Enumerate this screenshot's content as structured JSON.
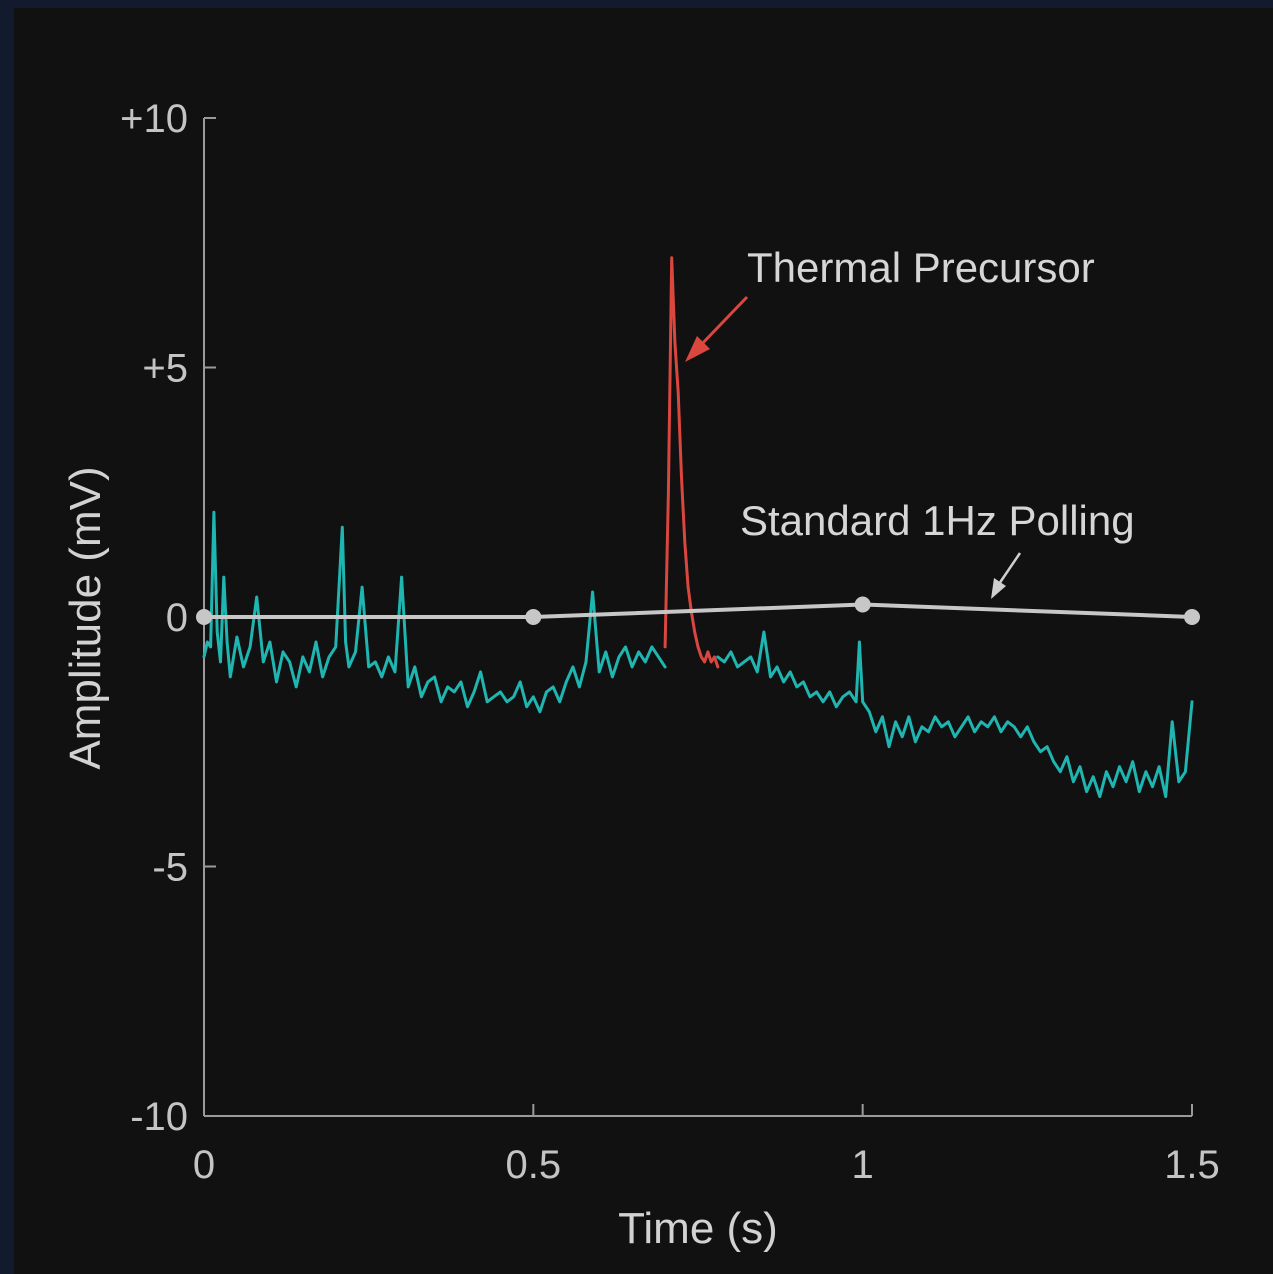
{
  "chart_data": {
    "type": "line",
    "title": "",
    "xlabel": "Time (s)",
    "ylabel": "Amplitude (mV)",
    "xlim": [
      0,
      1.5
    ],
    "ylim": [
      -10,
      10
    ],
    "x_ticks": [
      {
        "value": 0,
        "label": "0"
      },
      {
        "value": 0.5,
        "label": "0.5"
      },
      {
        "value": 1,
        "label": "1"
      },
      {
        "value": 1.5,
        "label": "1.5"
      }
    ],
    "y_ticks": [
      {
        "value": 10,
        "label": "+10"
      },
      {
        "value": 5,
        "label": "+5"
      },
      {
        "value": 0,
        "label": "0"
      },
      {
        "value": -5,
        "label": "-5"
      },
      {
        "value": -10,
        "label": "-10"
      }
    ],
    "grid": false,
    "series": [
      {
        "color": "#1fb5b0",
        "x": [
          0,
          0.005,
          0.01,
          0.015,
          0.02,
          0.025,
          0.03,
          0.035,
          0.04,
          0.05,
          0.06,
          0.07,
          0.08,
          0.09,
          0.1,
          0.11,
          0.12,
          0.13,
          0.14,
          0.15,
          0.16,
          0.17,
          0.18,
          0.19,
          0.2,
          0.21,
          0.215,
          0.22,
          0.23,
          0.24,
          0.25,
          0.26,
          0.27,
          0.28,
          0.29,
          0.3,
          0.31,
          0.32,
          0.33,
          0.34,
          0.35,
          0.36,
          0.37,
          0.38,
          0.39,
          0.4,
          0.41,
          0.42,
          0.43,
          0.44,
          0.45,
          0.46,
          0.47,
          0.48,
          0.49,
          0.5,
          0.51,
          0.52,
          0.53,
          0.54,
          0.55,
          0.56,
          0.57,
          0.58,
          0.59,
          0.6,
          0.61,
          0.62,
          0.63,
          0.64,
          0.65,
          0.66,
          0.67,
          0.68,
          0.69,
          0.7
        ],
        "values": [
          -0.8,
          -0.5,
          -0.6,
          2.1,
          -0.3,
          -0.9,
          0.8,
          -0.5,
          -1.2,
          -0.4,
          -1.0,
          -0.6,
          0.4,
          -0.9,
          -0.5,
          -1.3,
          -0.7,
          -0.9,
          -1.4,
          -0.8,
          -1.1,
          -0.5,
          -1.2,
          -0.8,
          -0.6,
          1.8,
          -0.5,
          -1.0,
          -0.7,
          0.6,
          -1.0,
          -0.9,
          -1.2,
          -0.8,
          -1.1,
          0.8,
          -1.4,
          -1.0,
          -1.6,
          -1.3,
          -1.2,
          -1.7,
          -1.4,
          -1.5,
          -1.3,
          -1.8,
          -1.5,
          -1.1,
          -1.7,
          -1.6,
          -1.5,
          -1.7,
          -1.6,
          -1.3,
          -1.8,
          -1.6,
          -1.9,
          -1.5,
          -1.4,
          -1.7,
          -1.3,
          -1.0,
          -1.4,
          -0.9,
          0.5,
          -1.1,
          -0.7,
          -1.2,
          -0.8,
          -0.6,
          -1.0,
          -0.7,
          -0.9,
          -0.6,
          -0.8,
          -1.0
        ]
      },
      {
        "color": "#d9473f",
        "x": [
          0.7,
          0.705,
          0.71,
          0.715,
          0.72,
          0.725,
          0.73,
          0.735,
          0.74,
          0.745,
          0.75,
          0.755,
          0.76,
          0.765,
          0.77,
          0.775,
          0.78
        ],
        "values": [
          -0.6,
          2.5,
          7.2,
          5.5,
          4.5,
          2.8,
          1.5,
          0.6,
          0.1,
          -0.3,
          -0.6,
          -0.8,
          -0.9,
          -0.7,
          -0.9,
          -0.8,
          -1.0
        ]
      },
      {
        "color": "#1fb5b0",
        "x": [
          0.78,
          0.79,
          0.8,
          0.81,
          0.82,
          0.83,
          0.84,
          0.85,
          0.86,
          0.87,
          0.88,
          0.89,
          0.9,
          0.91,
          0.92,
          0.93,
          0.94,
          0.95,
          0.96,
          0.97,
          0.98,
          0.99,
          0.995,
          1.0,
          1.01,
          1.02,
          1.03,
          1.04,
          1.05,
          1.06,
          1.07,
          1.08,
          1.09,
          1.1,
          1.11,
          1.12,
          1.13,
          1.14,
          1.15,
          1.16,
          1.17,
          1.18,
          1.19,
          1.2,
          1.21,
          1.22,
          1.23,
          1.24,
          1.25,
          1.26,
          1.27,
          1.28,
          1.29,
          1.3,
          1.31,
          1.32,
          1.33,
          1.34,
          1.35,
          1.36,
          1.37,
          1.38,
          1.39,
          1.4,
          1.41,
          1.42,
          1.43,
          1.44,
          1.45,
          1.46,
          1.47,
          1.48,
          1.49,
          1.5
        ],
        "values": [
          -0.8,
          -0.9,
          -0.7,
          -1.0,
          -0.9,
          -0.8,
          -1.1,
          -0.3,
          -1.2,
          -1.0,
          -1.3,
          -1.1,
          -1.4,
          -1.3,
          -1.6,
          -1.5,
          -1.7,
          -1.5,
          -1.8,
          -1.6,
          -1.5,
          -1.7,
          -0.5,
          -1.7,
          -1.9,
          -2.3,
          -2.0,
          -2.6,
          -2.1,
          -2.4,
          -2.0,
          -2.5,
          -2.2,
          -2.3,
          -2.0,
          -2.2,
          -2.1,
          -2.4,
          -2.2,
          -2.0,
          -2.3,
          -2.1,
          -2.2,
          -2.0,
          -2.3,
          -2.1,
          -2.2,
          -2.4,
          -2.2,
          -2.5,
          -2.7,
          -2.6,
          -2.9,
          -3.1,
          -2.8,
          -3.3,
          -3.0,
          -3.5,
          -3.2,
          -3.6,
          -3.1,
          -3.4,
          -3.0,
          -3.3,
          -2.9,
          -3.5,
          -3.1,
          -3.4,
          -3.0,
          -3.6,
          -2.1,
          -3.3,
          -3.1,
          -1.7
        ]
      },
      {
        "name": "Standard 1Hz Polling",
        "color": "#c7c7c7",
        "x": [
          0,
          0.5,
          1.0,
          1.5
        ],
        "values": [
          0,
          0,
          0.25,
          0
        ]
      }
    ],
    "annotations": [
      {
        "text": "Thermal Precursor",
        "color": "#d9473f",
        "target": {
          "x": 0.73,
          "y": 5.0
        }
      },
      {
        "text": "Standard 1Hz Polling",
        "color": "#d6d6d6",
        "target": {
          "x": 1.2,
          "y": 0.35
        }
      }
    ]
  }
}
